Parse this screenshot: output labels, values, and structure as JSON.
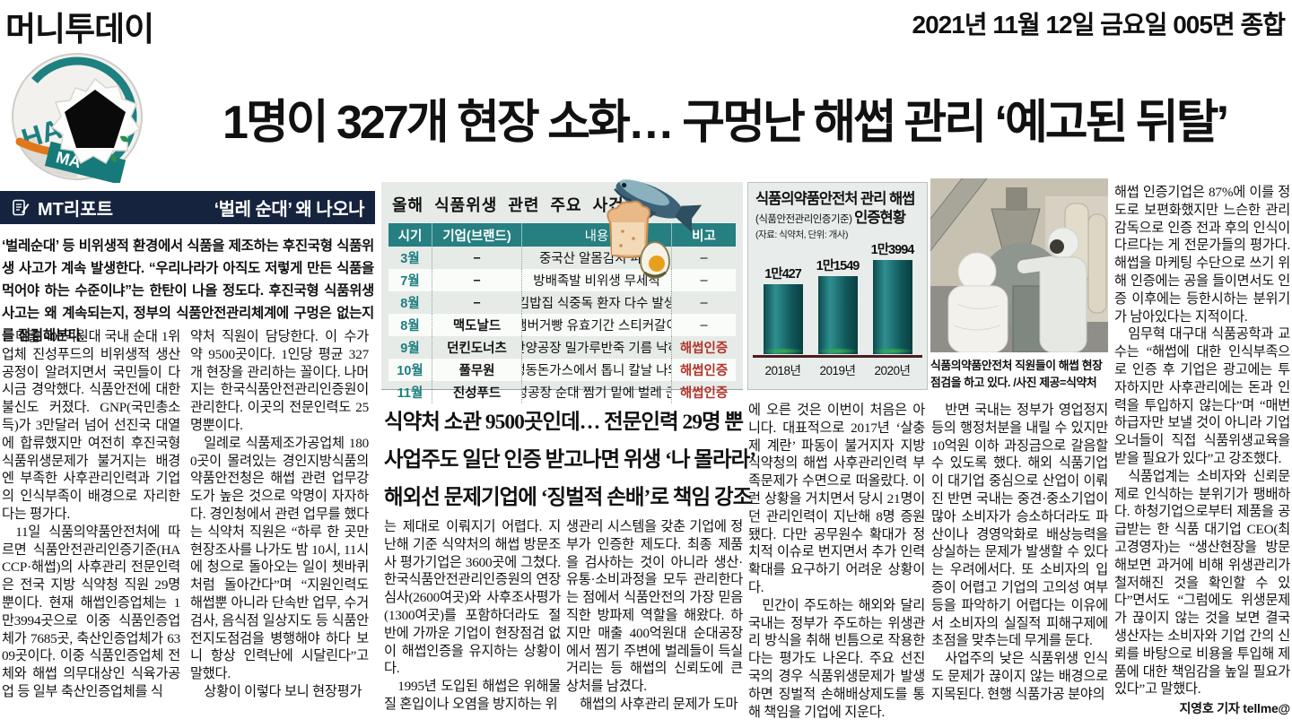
{
  "masthead": {
    "brand": "머니투데이",
    "edition": "2021년 11월 12일 금요일 005면 종합"
  },
  "headline": "1명이 327개 현장 소화… 구멍난 해썹 관리 ‘예고된 뒤탈’",
  "report_banner": {
    "label": "MT리포트",
    "title": "‘벌레 순대’ 왜 나오나",
    "icon": "notebook-pen-icon"
  },
  "lede": "‘벌레순대’ 등 비위생적 환경에서 식품을 제조하는 후진국형 식품위생 사고가 계속 발생한다. “우리나라가 아직도 저렇게 만든 식품을 먹어야 하는 수준이냐”는 한탄이 나올 정도다. 후진국형 식품위생사고는 왜 계속되는지, 정부의 식품안전관리체계에 구멍은 없는지를 점검해본다.",
  "pullquote": {
    "lines": [
      "식약처 소관 9500곳인데… 전문인력 29명 뿐",
      "사업주도 일단 인증 받고나면 위생 ‘나 몰라라’",
      "해외선 문제기업에 ‘징벌적 손배’로 책임 강조"
    ]
  },
  "incidents_table": {
    "title": "올해 식품위생 관련 주요 사건",
    "headers": [
      "시기",
      "기업(브랜드)",
      "내용",
      "비고"
    ],
    "rows": [
      {
        "month": "3월",
        "company": "–",
        "content": "중국산 알몸김치 파동",
        "note": "–",
        "certified": false
      },
      {
        "month": "7월",
        "company": "–",
        "content": "방배족발 비위생 무세척",
        "note": "–",
        "certified": false
      },
      {
        "month": "8월",
        "company": "–",
        "content": "김밥집 식중독 환자 다수 발생",
        "note": "–",
        "certified": false
      },
      {
        "month": "8월",
        "company": "맥도날드",
        "content": "햄버거빵 유효기간 스티커갈이",
        "note": "–",
        "certified": false
      },
      {
        "month": "9월",
        "company": "던킨도너츠",
        "content": "안양공장 밀가루반죽 기름 낙하",
        "note": "해썹인증",
        "certified": true
      },
      {
        "month": "10월",
        "company": "풀무원",
        "content": "냉동돈가스에서 톱니 칼날 나와",
        "note": "해썹인증",
        "certified": true
      },
      {
        "month": "11월",
        "company": "진성푸드",
        "content": "음성공장 순대 찜기 밑에 벌레 군집",
        "note": "해썹인증",
        "certified": true
      }
    ],
    "note_color": "#b2342a",
    "header_color": "#267f81"
  },
  "chart_data": {
    "type": "bar",
    "title_line1": "식품의약품안전처 관리 해썹",
    "title_line2_small": "(식품안전관리인증기준)",
    "title_line2_bold": "인증현황",
    "source": "(자료: 식약처, 단위: 개사)",
    "categories": [
      "2018년",
      "2019년",
      "2020년"
    ],
    "values": [
      10427,
      11549,
      13994
    ],
    "value_labels": [
      "1만427",
      "1만1549",
      "1만3994"
    ],
    "ylim": [
      0,
      14000
    ],
    "bar_color": "#11585b",
    "baseline_color": "#4a1d20",
    "legend_position": "none",
    "grid": false
  },
  "photo": {
    "caption": "식품의약품안전처 직원들이 해썹 현장 점검을 하고 있다. /사진 제공=식약처"
  },
  "article": {
    "columns": {
      "col1": {
        "paragraphs": [
          {
            "indent": true,
            "text": "매출 400억원대 국내 순대 1위 업체 진성푸드의 비위생적 생산 공정이 알려지면서 국민들이 다시금 경악했다. 식품안전에 대한 불신도 커졌다. GNP(국민총소득)가 3만달러 넘어 선진국 대열에 합류했지만 여전히 후진국형 식품위생문제가 불거지는 배경엔 부족한 사후관리인력과 기업의 인식부족이 배경으로 자리한다는 평가다."
          },
          {
            "indent": true,
            "text": "11일 식품의약품안전처에 따르면 식품안전관리인증기준(HACCP·해썹)의 사후관리 전문인력은 전국 지방 식약청 직원 29명 뿐이다. 현재 해썹인증업체는 1만3994곳으로 이중 식품인증업체가 7685곳, 축산인증업체가 6309곳이다. 이중 식품인증업체 전체와 해썹 의무대상인 식육가공업 등 일부 축산인증업체를 식"
          }
        ]
      },
      "col2": {
        "paragraphs": [
          {
            "indent": false,
            "text": "약처 직원이 담당한다. 이 수가 약 9500곳이다. 1인당 평균 327개 현장을 관리하는 꼴이다. 나머지는 한국식품안전관리인증원이 관리한다. 이곳의 전문인력도 25명뿐이다."
          },
          {
            "indent": true,
            "text": "일례로 식품제조가공업체 1800곳이 몰려있는 경인지방식품의약품안전청은 해썹 관련 업무강도가 높은 것으로 악명이 자자하다. 경인청에서 관련 업무를 했다는 식약처 직원은 “하루 한 곳만 현장조사를 나가도 밤 10시, 11시에 청으로 돌아오는 일이 쳇바퀴처럼 돌아간다”며 “지원인력도 해썹뿐 아니라 단속반 업무, 수거검사, 음식점 일상지도 등 식품안전지도점검을 병행해야 하다 보니 항상 인력난에 시달린다”고 말했다."
          },
          {
            "indent": true,
            "text": "상황이 이렇다 보니 현장평가"
          }
        ]
      },
      "col3": {
        "paragraphs": [
          {
            "indent": false,
            "text": "는 제대로 이뤄지기 어렵다. 지난해 기준 식약처의 해썹 방문조사 평가기업은 3600곳에 그쳤다. 한국식품안전관리인증원의 연장심사(2600여곳)와 사후조사평가(1300여곳)를 포함하더라도 절반에 가까운 기업이 현장점검 없이 해썹인증을 유지하는 상황이다."
          },
          {
            "indent": true,
            "text": "1995년 도입된 해썹은 위해물질 혼입이나 오염을 방지하는 위"
          }
        ]
      },
      "col4": {
        "paragraphs": [
          {
            "indent": false,
            "text": "생관리 시스템을 갖춘 기업에 정부가 인증한 제도다. 최종 제품을 검사하는 것이 아니라 생산·유통·소비과정을 모두 관리한다는 점에서 식품안전의 가장 믿음직한 방파제 역할을 해왔다. 하지만 매출 400억원대 순대공장에서 찜기 주변에 벌레들이 득실거리는 등 해썹의 신뢰도에 큰 상처를 남겼다."
          },
          {
            "indent": true,
            "text": "해썹의 사후관리 문제가 도마"
          }
        ]
      },
      "col5": {
        "paragraphs": [
          {
            "indent": false,
            "text": "에 오른 것은 이번이 처음은 아니다. 대표적으로 2017년 ‘살충제 계란’ 파동이 불거지자 지방식약청의 해썹 사후관리인력 부족문제가 수면으로 떠올랐다. 이런 상황을 거치면서 당시 21명이던 관리인력이 지난해 8명 증원됐다. 다만 공무원수 확대가 정치적 이슈로 번지면서 추가 인력확대를 요구하기 어려운 상황이다."
          },
          {
            "indent": true,
            "text": "민간이 주도하는 해외와 달리 국내는 정부가 주도하는 위생관리 방식을 취해 빈틈으로 작용한다는 평가도 나온다. 주요 선진국의 경우 식품위생문제가 발생하면 징벌적 손해배상제도를 통해 책임을 기업에 지운다."
          }
        ]
      },
      "col6": {
        "paragraphs": [
          {
            "indent": true,
            "text": "반면 국내는 정부가 영업정지 등의 행정처분을 내릴 수 있지만 10억원 이하 과징금으로 갈음할 수 있도록 했다. 해외 식품기업이 대기업 중심으로 산업이 이뤄진 반면 국내는 중견·중소기업이 많아 소비자가 승소하더라도 파산이나 경영악화로 배상능력을 상실하는 문제가 발생할 수 있다는 우려에서다. 또 소비자의 입증이 어렵고 기업의 고의성 여부 등을 파악하기 어렵다는 이유에서 소비자의 실질적 피해구제에 초점을 맞추는데 무게를 둔다."
          },
          {
            "indent": true,
            "text": "사업주의 낮은 식품위생 인식도 문제가 끊이지 않는 배경으로 지목된다. 현행 식품가공 분야의"
          }
        ]
      },
      "col7": {
        "paragraphs": [
          {
            "indent": false,
            "text": "해썹 인증기업은 87%에 이를 정도로 보편화했지만 느슨한 관리감독으로 인증 전과 후의 인식이 다르다는 게 전문가들의 평가다. 해썹을 마케팅 수단으로 쓰기 위해 인증에는 공을 들이면서도 인증 이후에는 등한시하는 분위기가 남아있다는 지적이다."
          },
          {
            "indent": true,
            "text": "임무혁 대구대 식품공학과 교수는 “해썹에 대한 인식부족으로 인증 후 기업은 광고에는 투자하지만 사후관리에는 돈과 인력을 투입하지 않는다”며 “매번 하급자만 보낼 것이 아니라 기업 오너들이 직접 식품위생교육을 받을 필요가 있다”고 강조했다."
          },
          {
            "indent": true,
            "text": "식품업계는 소비자와 신뢰문제로 인식하는 분위기가 팽배하다. 하청기업으로부터 제품을 공급받는 한 식품 대기업 CEO(최고경영자)는 “생산현장을 방문해보면 과거에 비해 위생관리가 철저해진 것을 확인할 수 있다”면서도 “그럼에도 위생문제가 끊이지 않는 것을 보면 결국 생산자는 소비자와 기업 간의 신뢰를 바탕으로 비용을 투입해 제품에 대한 책임감을 높일 필요가 있다”고 말했다."
          }
        ]
      }
    },
    "byline": "지영호 기자 tellme@"
  }
}
